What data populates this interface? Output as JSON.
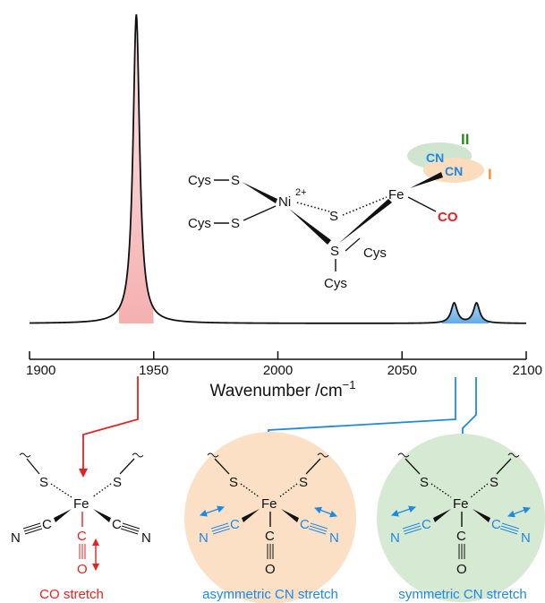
{
  "chart_data": {
    "type": "line",
    "title": "",
    "xlabel": "Wavenumber /cm",
    "xlabel_superscript": "−1",
    "ylabel": "",
    "xlim": [
      1900,
      2100
    ],
    "x_ticks": [
      1900,
      1950,
      2000,
      2050,
      2100
    ],
    "x_tick_labels": [
      "1900",
      "1950",
      "2000",
      "2050",
      "2100"
    ],
    "grid": false,
    "legend": "none",
    "series": [
      {
        "peaks": [
          {
            "x": 1943,
            "height": 1.0,
            "width": 1.6
          },
          {
            "x": 2071,
            "height": 0.065,
            "width": 1.5
          },
          {
            "x": 2080,
            "height": 0.065,
            "width": 1.5
          }
        ],
        "baseline": 0.0
      }
    ],
    "peak_fills": {
      "co": "#f4a7a7",
      "cn": "#5aa8ea"
    }
  },
  "structure": {
    "left_cys_top": "Cys",
    "left_cys_bottom": "Cys",
    "s": "S",
    "ni": "Ni",
    "ni_charge": "2+",
    "fe": "Fe",
    "cys_right": "Cys",
    "cys_bottom": "Cys",
    "cn": "CN",
    "co": "CO",
    "label_ii": "II",
    "label_i": "I",
    "label_ii_color": "#2e8b1e",
    "label_i_color": "#f2962a",
    "ellipse_ii_color": "#cfe5cf",
    "ellipse_i_color": "#fbdcbc"
  },
  "modes": [
    {
      "caption": "CO stretch",
      "color": "#e8211f"
    },
    {
      "caption": "asymmetric CN stretch",
      "color": "#1e88e5",
      "circle": "#fbe0c6"
    },
    {
      "caption": "symmetric CN stretch",
      "color": "#1e88e5",
      "circle": "#d6e9d2"
    }
  ],
  "mode_atoms": {
    "fe": "Fe",
    "s": "S",
    "c": "C",
    "n": "N",
    "o": "O"
  },
  "colors": {
    "red": "#e8211f",
    "blue": "#1e88e5",
    "cn_text": "#1e88e5",
    "co_text": "#e8211f"
  }
}
